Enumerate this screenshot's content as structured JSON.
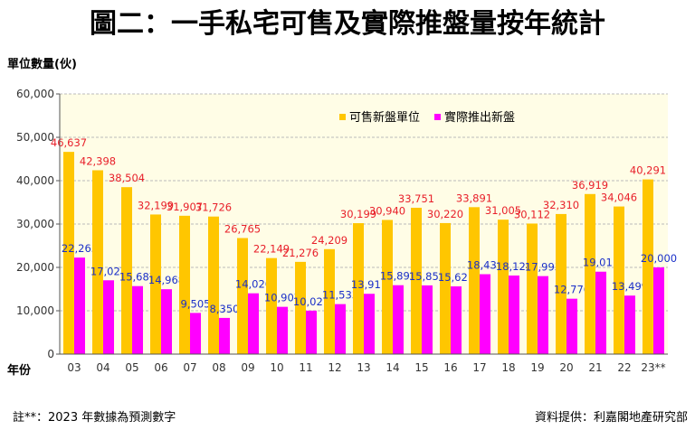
{
  "chart_data": {
    "type": "bar",
    "title": "圖二：一手私宅可售及實際推盤量按年統計",
    "ylabel": "單位數量(伙)",
    "xlabel": "年份",
    "ylim": [
      0,
      60000
    ],
    "yticks": [
      "0",
      "10,000",
      "20,000",
      "30,000",
      "40,000",
      "50,000",
      "60,000"
    ],
    "grid": true,
    "legend_position": "top-right",
    "categories": [
      "03",
      "04",
      "05",
      "06",
      "07",
      "08",
      "09",
      "10",
      "11",
      "12",
      "13",
      "14",
      "15",
      "16",
      "17",
      "18",
      "19",
      "20",
      "21",
      "22",
      "23**"
    ],
    "series": [
      {
        "name": "可售新盤單位",
        "color": "#ffc600",
        "label_color": "#e8202a",
        "values": [
          46637,
          42398,
          38504,
          32199,
          31907,
          31726,
          26765,
          22149,
          21276,
          24209,
          30199,
          30940,
          33751,
          30220,
          33891,
          31005,
          30112,
          32310,
          36919,
          34046,
          40291
        ]
      },
      {
        "name": "實際推出新盤",
        "color": "#ff00ff",
        "label_color": "#1a2fc8",
        "values": [
          22265,
          17027,
          15687,
          14968,
          9505,
          8350,
          14026,
          10907,
          10027,
          11533,
          13911,
          15893,
          15853,
          15621,
          18431,
          18124,
          17993,
          12776,
          19011,
          13499,
          20000
        ]
      }
    ],
    "footnote": "註**：2023 年數據為預測數字",
    "source": "資料提供：利嘉閣地產研究部"
  }
}
